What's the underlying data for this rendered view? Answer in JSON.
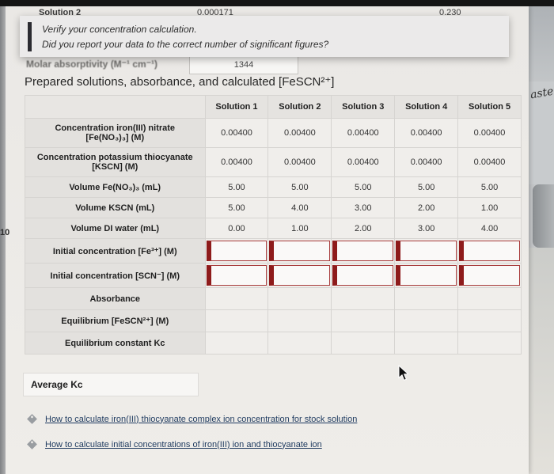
{
  "colors": {
    "flag_accent": "#8e1b1b",
    "link": "#1e3a5f",
    "topbar": "#151515",
    "page_background": "#eceae7"
  },
  "background_peek": {
    "row_label": "Solution 2",
    "value_left": "0.000171",
    "value_right": "0.230",
    "left_edge_fragment": "10",
    "right_strip_fragment": "aste"
  },
  "tooltip": {
    "line1": "Verify your concentration calculation.",
    "line2": "Did you report your data to the correct number of significant figures?"
  },
  "molar_absorptivity": {
    "label": "Molar absorptivity (M⁻¹ cm⁻¹)",
    "value": "1344"
  },
  "section_title": "Prepared solutions, absorbance, and calculated [FeSCN²⁺]",
  "table": {
    "columns": [
      "Solution 1",
      "Solution 2",
      "Solution 3",
      "Solution 4",
      "Solution 5"
    ],
    "rows": [
      {
        "label": "Concentration iron(III) nitrate [Fe(NO₃)₃] (M)",
        "type": "value",
        "values": [
          "0.00400",
          "0.00400",
          "0.00400",
          "0.00400",
          "0.00400"
        ]
      },
      {
        "label": "Concentration potassium thiocyanate [KSCN] (M)",
        "type": "value",
        "values": [
          "0.00400",
          "0.00400",
          "0.00400",
          "0.00400",
          "0.00400"
        ]
      },
      {
        "label": "Volume Fe(NO₃)₃ (mL)",
        "type": "value",
        "values": [
          "5.00",
          "5.00",
          "5.00",
          "5.00",
          "5.00"
        ]
      },
      {
        "label": "Volume KSCN (mL)",
        "type": "value",
        "values": [
          "5.00",
          "4.00",
          "3.00",
          "2.00",
          "1.00"
        ]
      },
      {
        "label": "Volume DI water (mL)",
        "type": "value",
        "values": [
          "0.00",
          "1.00",
          "2.00",
          "3.00",
          "4.00"
        ]
      },
      {
        "label": "Initial concentration [Fe³⁺] (M)",
        "type": "input",
        "values": [
          "",
          "",
          "",
          "",
          ""
        ]
      },
      {
        "label": "Initial concentration [SCN⁻] (M)",
        "type": "input",
        "values": [
          "",
          "",
          "",
          "",
          ""
        ]
      },
      {
        "label": "Absorbance",
        "type": "entry",
        "values": [
          "",
          "",
          "",
          "",
          ""
        ]
      },
      {
        "label": "Equilibrium [FeSCN²⁺] (M)",
        "type": "entry",
        "values": [
          "",
          "",
          "",
          "",
          ""
        ]
      },
      {
        "label": "Equilibrium constant Kc",
        "type": "entry",
        "values": [
          "",
          "",
          "",
          "",
          ""
        ]
      }
    ]
  },
  "average_kc": {
    "label": "Average Kc",
    "value": ""
  },
  "links": [
    {
      "label": "How to calculate iron(III) thiocyanate complex ion concentration for stock solution"
    },
    {
      "label": "How to calculate initial concentrations of iron(III) ion and thiocyanate ion"
    }
  ]
}
